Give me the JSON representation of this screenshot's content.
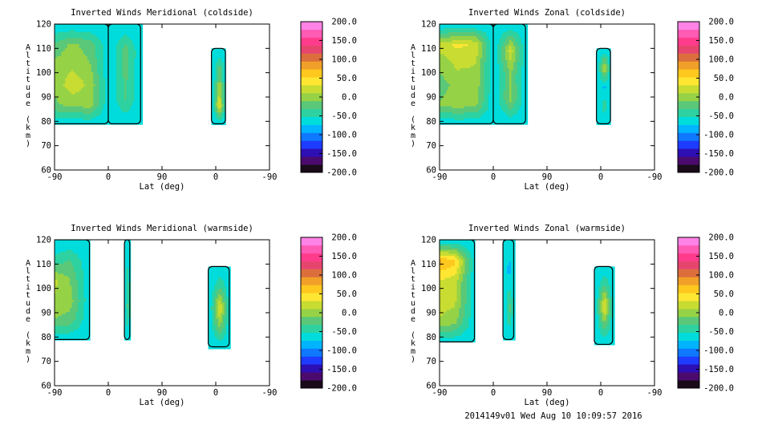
{
  "footer": "2014149v01 Wed Aug 10 10:09:57 2016",
  "colors": [
    "#1a0a1a",
    "#4b0a6e",
    "#2d0fb4",
    "#1e3cff",
    "#0f78ff",
    "#00b4ff",
    "#00dcdc",
    "#2dd2a0",
    "#5ac878",
    "#96d246",
    "#c8dc32",
    "#ffe632",
    "#ffc81e",
    "#f0a028",
    "#dc6e3c",
    "#e6466e",
    "#ff3c8c",
    "#ff5ab4",
    "#ff82e6"
  ],
  "colorbar_ticks": [
    "200.0",
    "150.0",
    "100.0",
    "50.0",
    "0.0",
    "-50.0",
    "-100.0",
    "-150.0",
    "-200.0"
  ],
  "chart_data": [
    {
      "type": "heatmap",
      "title": "Inverted Winds Meridional (coldside)",
      "xlabel": "Lat (deg)",
      "ylabel": "Altitude (km)",
      "xticks": [
        "-90",
        "0",
        "90",
        "0",
        "-90"
      ],
      "yticks": [
        "60",
        "70",
        "80",
        "90",
        "100",
        "110",
        "120"
      ],
      "xlim": [
        0,
        400
      ],
      "ylim": [
        60,
        120
      ],
      "clim": [
        -200,
        200
      ],
      "regions": [
        {
          "x": [
            -40,
            25,
            75,
            100
          ],
          "ylim": [
            79,
            120
          ],
          "vals": [
            [
              -72,
              -72,
              -72,
              -72,
              -72
            ],
            [
              -72,
              -30,
              -5,
              -20,
              -72
            ],
            [
              -72,
              -5,
              5,
              -10,
              -72
            ],
            [
              -72,
              -10,
              25,
              5,
              -72
            ],
            [
              -72,
              -15,
              -5,
              0,
              -72
            ],
            [
              -72,
              -72,
              -72,
              -72,
              -72
            ]
          ]
        },
        {
          "x": [
            100,
            160
          ],
          "ylim": [
            79,
            120
          ],
          "vals": [
            [
              -72,
              -72,
              -72
            ],
            [
              -72,
              -20,
              -72
            ],
            [
              -72,
              -25,
              -72
            ],
            [
              -72,
              -30,
              -72
            ],
            [
              -72,
              -72,
              -72
            ]
          ]
        },
        {
          "x": [
            292,
            318
          ],
          "ylim": [
            79,
            110
          ],
          "vals": [
            [
              -72,
              -72,
              -72
            ],
            [
              -72,
              -20,
              -72
            ],
            [
              -72,
              5,
              -72
            ],
            [
              -72,
              40,
              -72
            ],
            [
              -72,
              -72,
              -72
            ]
          ]
        }
      ]
    },
    {
      "type": "heatmap",
      "title": "Inverted Winds Zonal (coldside)",
      "xlabel": "Lat (deg)",
      "ylabel": "Altitude (km)",
      "xticks": [
        "-90",
        "0",
        "90",
        "0",
        "-90"
      ],
      "yticks": [
        "60",
        "70",
        "80",
        "90",
        "100",
        "110",
        "120"
      ],
      "xlim": [
        0,
        400
      ],
      "ylim": [
        60,
        120
      ],
      "clim": [
        -200,
        200
      ],
      "regions": [
        {
          "x": [
            -40,
            25,
            75,
            100
          ],
          "ylim": [
            79,
            120
          ],
          "vals": [
            [
              -72,
              -72,
              -72,
              -72,
              -72
            ],
            [
              -72,
              20,
              35,
              30,
              -72
            ],
            [
              -72,
              -10,
              15,
              10,
              -72
            ],
            [
              -72,
              -20,
              -5,
              5,
              -72
            ],
            [
              -72,
              -10,
              0,
              -5,
              -72
            ],
            [
              -72,
              -72,
              -72,
              -72,
              -72
            ]
          ]
        },
        {
          "x": [
            100,
            160
          ],
          "ylim": [
            79,
            120
          ],
          "vals": [
            [
              -72,
              -72,
              -72
            ],
            [
              -72,
              25,
              -72
            ],
            [
              -72,
              -10,
              -72
            ],
            [
              -72,
              -5,
              -72
            ],
            [
              -72,
              -72,
              -72
            ]
          ]
        },
        {
          "x": [
            292,
            318
          ],
          "ylim": [
            79,
            110
          ],
          "vals": [
            [
              -72,
              -72,
              -72
            ],
            [
              -72,
              20,
              -72
            ],
            [
              -72,
              -75,
              -72
            ],
            [
              -72,
              -40,
              -72
            ],
            [
              -72,
              -72,
              -72
            ]
          ]
        }
      ]
    },
    {
      "type": "heatmap",
      "title": "Inverted Winds Meridional (warmside)",
      "xlabel": "Lat (deg)",
      "ylabel": "Altitude (km)",
      "xticks": [
        "-90",
        "0",
        "90",
        "0",
        "-90"
      ],
      "yticks": [
        "60",
        "70",
        "80",
        "90",
        "100",
        "110",
        "120"
      ],
      "xlim": [
        0,
        400
      ],
      "ylim": [
        60,
        120
      ],
      "clim": [
        -200,
        200
      ],
      "regions": [
        {
          "x": [
            -50,
            20,
            65
          ],
          "ylim": [
            79,
            120
          ],
          "vals": [
            [
              -72,
              -72,
              -72,
              -72
            ],
            [
              -72,
              -50,
              -30,
              -72
            ],
            [
              -72,
              25,
              -10,
              -72
            ],
            [
              -72,
              10,
              0,
              -72
            ],
            [
              -72,
              -10,
              -20,
              -72
            ],
            [
              -72,
              -72,
              -72,
              -72
            ]
          ]
        },
        {
          "x": [
            130,
            140
          ],
          "ylim": [
            79,
            120
          ],
          "vals": [
            [
              -72,
              -72,
              -72
            ],
            [
              -72,
              -40,
              -72
            ],
            [
              -72,
              -15,
              -72
            ],
            [
              -72,
              -72,
              -72
            ]
          ]
        },
        {
          "x": [
            286,
            325
          ],
          "ylim": [
            76,
            109
          ],
          "vals": [
            [
              -72,
              -72,
              -72
            ],
            [
              -72,
              -30,
              -72
            ],
            [
              -72,
              35,
              -72
            ],
            [
              -72,
              -10,
              -72
            ],
            [
              -72,
              -72,
              -72
            ]
          ]
        }
      ]
    },
    {
      "type": "heatmap",
      "title": "Inverted Winds Zonal (warmside)",
      "xlabel": "Lat (deg)",
      "ylabel": "Altitude (km)",
      "xticks": [
        "-90",
        "0",
        "90",
        "0",
        "-90"
      ],
      "yticks": [
        "60",
        "70",
        "80",
        "90",
        "100",
        "110",
        "120"
      ],
      "xlim": [
        0,
        400
      ],
      "ylim": [
        60,
        120
      ],
      "clim": [
        -200,
        200
      ],
      "regions": [
        {
          "x": [
            -50,
            20,
            65
          ],
          "ylim": [
            78,
            120
          ],
          "vals": [
            [
              -72,
              -72,
              -72,
              -72
            ],
            [
              -72,
              85,
              60,
              -72
            ],
            [
              -72,
              30,
              20,
              -72
            ],
            [
              -72,
              25,
              15,
              -72
            ],
            [
              -72,
              10,
              -5,
              -72
            ],
            [
              -72,
              -72,
              -72,
              -72
            ]
          ]
        },
        {
          "x": [
            118,
            138
          ],
          "ylim": [
            79,
            120
          ],
          "vals": [
            [
              -72,
              -72,
              -72
            ],
            [
              -72,
              -75,
              -72
            ],
            [
              -72,
              -20,
              -72
            ],
            [
              -72,
              -72,
              -72
            ]
          ]
        },
        {
          "x": [
            288,
            322
          ],
          "ylim": [
            77,
            109
          ],
          "vals": [
            [
              -72,
              -72,
              -72
            ],
            [
              -72,
              -25,
              -72
            ],
            [
              -72,
              45,
              -72
            ],
            [
              -72,
              -20,
              -72
            ],
            [
              -72,
              -72,
              -72
            ]
          ]
        }
      ]
    }
  ]
}
